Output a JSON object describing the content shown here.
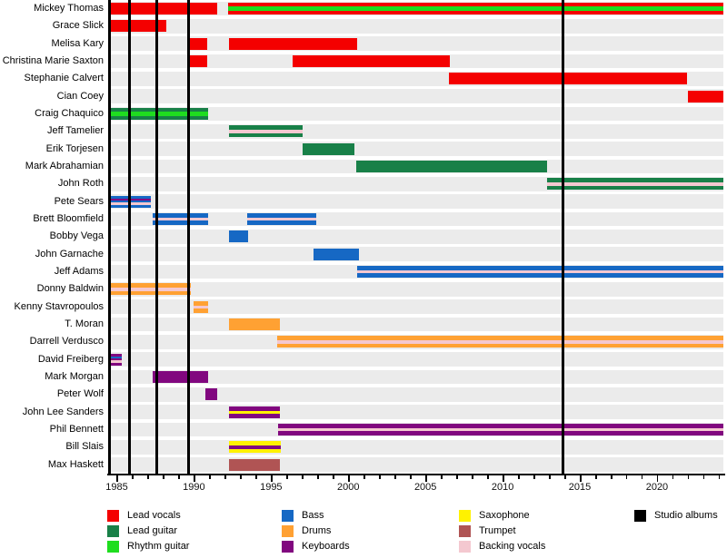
{
  "chart_data": {
    "type": "gantt-timeline",
    "description": "Band members timeline with instrument roles and studio album release lines",
    "x_axis": {
      "min": 1984.5,
      "max": 2024.3,
      "major_ticks": [
        1985,
        1990,
        1995,
        2000,
        2005,
        2010,
        2015,
        2020
      ],
      "minor_step": 1,
      "grid": false
    },
    "colors": {
      "lead_vocals": "#F40000",
      "lead_guitar": "#188048",
      "rhythm_guitar": "#1FDD1F",
      "bass": "#1668C4",
      "drums": "#FFA133",
      "keyboards": "#81077F",
      "saxophone": "#FFF200",
      "trumpet": "#B05454",
      "backing_vocals": "#F4C8D0",
      "album": "#000000",
      "row_band": "#EBEBEB"
    },
    "legend_columns": [
      [
        {
          "label": "Lead vocals",
          "role": "lead_vocals"
        },
        {
          "label": "Lead guitar",
          "role": "lead_guitar"
        },
        {
          "label": "Rhythm guitar",
          "role": "rhythm_guitar"
        }
      ],
      [
        {
          "label": "Bass",
          "role": "bass"
        },
        {
          "label": "Drums",
          "role": "drums"
        },
        {
          "label": "Keyboards",
          "role": "keyboards"
        }
      ],
      [
        {
          "label": "Saxophone",
          "role": "saxophone"
        },
        {
          "label": "Trumpet",
          "role": "trumpet"
        },
        {
          "label": "Backing vocals",
          "role": "backing_vocals"
        }
      ],
      [
        {
          "label": "Studio albums",
          "role": "album"
        }
      ]
    ],
    "album_years": [
      1985.8,
      1987.6,
      1989.65,
      2013.9
    ],
    "members": [
      {
        "name": "Mickey Thomas",
        "bars": [
          {
            "start": 1984.5,
            "end": 1991.5,
            "role": "lead_vocals"
          },
          {
            "start": 1992.2,
            "end": 2024.3,
            "role": "lead_vocals",
            "stripes": [
              "rhythm_guitar"
            ]
          }
        ]
      },
      {
        "name": "Grace Slick",
        "bars": [
          {
            "start": 1984.5,
            "end": 1988.2,
            "role": "lead_vocals"
          }
        ]
      },
      {
        "name": "Melisa Kary",
        "bars": [
          {
            "start": 1989.7,
            "end": 1990.85,
            "role": "lead_vocals"
          },
          {
            "start": 1992.3,
            "end": 2000.6,
            "role": "lead_vocals"
          }
        ]
      },
      {
        "name": "Christina Marie Saxton",
        "bars": [
          {
            "start": 1989.65,
            "end": 1990.85,
            "role": "lead_vocals"
          },
          {
            "start": 1996.4,
            "end": 2006.6,
            "role": "lead_vocals"
          }
        ]
      },
      {
        "name": "Stephanie Calvert",
        "bars": [
          {
            "start": 2006.5,
            "end": 2021.95,
            "role": "lead_vocals"
          }
        ]
      },
      {
        "name": "Cian Coey",
        "bars": [
          {
            "start": 2022.0,
            "end": 2024.3,
            "role": "lead_vocals"
          }
        ]
      },
      {
        "name": "Craig Chaquico",
        "bars": [
          {
            "start": 1984.5,
            "end": 1990.9,
            "role": "lead_guitar",
            "stripes": [
              "rhythm_guitar"
            ]
          }
        ]
      },
      {
        "name": "Jeff Tamelier",
        "bars": [
          {
            "start": 1992.3,
            "end": 1997.05,
            "role": "lead_guitar",
            "stripes": [
              "backing_vocals"
            ]
          }
        ]
      },
      {
        "name": "Erik Torjesen",
        "bars": [
          {
            "start": 1997.05,
            "end": 2000.4,
            "role": "lead_guitar"
          }
        ]
      },
      {
        "name": "Mark Abrahamian",
        "bars": [
          {
            "start": 2000.5,
            "end": 2012.9,
            "role": "lead_guitar"
          }
        ]
      },
      {
        "name": "John Roth",
        "bars": [
          {
            "start": 2012.9,
            "end": 2024.3,
            "role": "lead_guitar",
            "stripes": [
              "backing_vocals"
            ]
          }
        ]
      },
      {
        "name": "Pete Sears",
        "bars": [
          {
            "start": 1984.5,
            "end": 1987.2,
            "role": "bass",
            "stripes": [
              "keyboards",
              "backing_vocals"
            ]
          }
        ]
      },
      {
        "name": "Brett Bloomfield",
        "bars": [
          {
            "start": 1987.3,
            "end": 1990.9,
            "role": "bass",
            "stripes": [
              "backing_vocals"
            ]
          },
          {
            "start": 1993.45,
            "end": 1997.9,
            "role": "bass",
            "stripes": [
              "backing_vocals"
            ]
          }
        ]
      },
      {
        "name": "Bobby Vega",
        "bars": [
          {
            "start": 1992.3,
            "end": 1993.5,
            "role": "bass"
          }
        ]
      },
      {
        "name": "John Garnache",
        "bars": [
          {
            "start": 1997.75,
            "end": 2000.7,
            "role": "bass"
          }
        ]
      },
      {
        "name": "Jeff Adams",
        "bars": [
          {
            "start": 2000.6,
            "end": 2024.3,
            "role": "bass",
            "stripes": [
              "backing_vocals"
            ]
          }
        ]
      },
      {
        "name": "Donny Baldwin",
        "bars": [
          {
            "start": 1984.5,
            "end": 1989.8,
            "role": "drums",
            "stripes": [
              "backing_vocals"
            ]
          }
        ]
      },
      {
        "name": "Kenny Stavropoulos",
        "bars": [
          {
            "start": 1990.0,
            "end": 1990.9,
            "role": "drums",
            "stripes": [
              "backing_vocals"
            ]
          }
        ]
      },
      {
        "name": "T. Moran",
        "bars": [
          {
            "start": 1992.3,
            "end": 1995.55,
            "role": "drums"
          }
        ]
      },
      {
        "name": "Darrell Verdusco",
        "bars": [
          {
            "start": 1995.4,
            "end": 2024.3,
            "role": "drums",
            "stripes": [
              "backing_vocals"
            ]
          }
        ]
      },
      {
        "name": "David Freiberg",
        "bars": [
          {
            "start": 1984.5,
            "end": 1985.3,
            "role": "keyboards",
            "stripes": [
              "bass",
              "backing_vocals"
            ]
          }
        ]
      },
      {
        "name": "Mark Morgan",
        "bars": [
          {
            "start": 1987.35,
            "end": 1990.9,
            "role": "keyboards"
          }
        ]
      },
      {
        "name": "Peter Wolf",
        "bars": [
          {
            "start": 1990.75,
            "end": 1991.5,
            "role": "keyboards"
          }
        ]
      },
      {
        "name": "John Lee Sanders",
        "bars": [
          {
            "start": 1992.3,
            "end": 1995.55,
            "role": "keyboards",
            "stripes": [
              "saxophone"
            ]
          }
        ]
      },
      {
        "name": "Phil Bennett",
        "bars": [
          {
            "start": 1995.45,
            "end": 2024.3,
            "role": "keyboards",
            "stripes": [
              "backing_vocals"
            ]
          }
        ]
      },
      {
        "name": "Bill Slais",
        "bars": [
          {
            "start": 1992.3,
            "end": 1995.6,
            "role": "saxophone",
            "stripes": [
              "keyboards"
            ]
          }
        ]
      },
      {
        "name": "Max Haskett",
        "bars": [
          {
            "start": 1992.3,
            "end": 1995.55,
            "role": "trumpet"
          }
        ]
      }
    ]
  }
}
